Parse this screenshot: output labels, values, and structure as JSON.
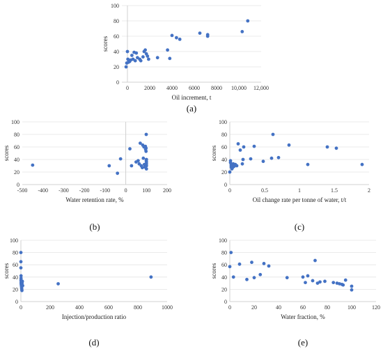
{
  "colors": {
    "point": "#4472c4",
    "axis": "#d0d0d0",
    "grid": "#e4e4e4"
  },
  "chart_data": [
    {
      "type": "scatter",
      "panel_label": "(a)",
      "xlabel": "Oil increment, t",
      "ylabel": "scores",
      "xlim": [
        -500,
        12000
      ],
      "ylim": [
        0,
        100
      ],
      "xticks": [
        0,
        2000,
        4000,
        6000,
        8000,
        10000,
        12000
      ],
      "xtick_labels": [
        "0",
        "2000",
        "4000",
        "6000",
        "8000",
        "10,000",
        "12,000"
      ],
      "yticks": [
        0,
        20,
        40,
        60,
        80,
        100
      ],
      "grid": "horizontal",
      "x": [
        -120,
        -60,
        0,
        40,
        80,
        150,
        200,
        300,
        400,
        500,
        600,
        700,
        800,
        900,
        1100,
        1200,
        1400,
        1500,
        1600,
        1700,
        1800,
        1900,
        2700,
        3600,
        3800,
        4000,
        4400,
        4700,
        6500,
        7200,
        7200,
        10300,
        10800
      ],
      "y": [
        20,
        25,
        40,
        30,
        26,
        28,
        27,
        29,
        35,
        30,
        39,
        28,
        38,
        32,
        30,
        28,
        33,
        40,
        42,
        37,
        34,
        30,
        32,
        42,
        31,
        61,
        58,
        56,
        64,
        62,
        60,
        66,
        80
      ]
    },
    {
      "type": "scatter",
      "panel_label": "(b)",
      "xlabel": "Water retention rate, %",
      "ylabel": "scores",
      "xlim": [
        -500,
        200
      ],
      "ylim": [
        0,
        100
      ],
      "xticks": [
        -500,
        -400,
        -300,
        -200,
        -100,
        0,
        100,
        200
      ],
      "yticks": [
        0,
        20,
        40,
        60,
        80,
        100
      ],
      "grid": "horizontal",
      "x": [
        -450,
        -80,
        -40,
        -25,
        20,
        28,
        50,
        60,
        65,
        70,
        75,
        80,
        82,
        85,
        88,
        90,
        92,
        95,
        96,
        98,
        99,
        100,
        100,
        100,
        100,
        100,
        99,
        98
      ],
      "y": [
        31,
        30,
        18,
        41,
        57,
        30,
        36,
        38,
        33,
        66,
        30,
        27,
        63,
        42,
        60,
        32,
        28,
        61,
        56,
        58,
        80,
        40,
        36,
        33,
        30,
        25,
        38,
        53
      ]
    },
    {
      "type": "scatter",
      "panel_label": "(c)",
      "xlabel": "Oil change rate per tonne of water, t/t",
      "ylabel": "scores",
      "xlim": [
        0,
        2
      ],
      "ylim": [
        0,
        100
      ],
      "xticks": [
        0,
        0.5,
        1,
        1.5,
        2
      ],
      "yticks": [
        0,
        20,
        40,
        60,
        80,
        100
      ],
      "grid": "horizontal",
      "x": [
        0.0,
        0.01,
        0.01,
        0.02,
        0.02,
        0.03,
        0.03,
        0.04,
        0.05,
        0.06,
        0.08,
        0.1,
        0.12,
        0.15,
        0.18,
        0.19,
        0.2,
        0.3,
        0.35,
        0.48,
        0.6,
        0.62,
        0.7,
        0.85,
        1.12,
        1.4,
        1.53,
        1.9
      ],
      "y": [
        20,
        35,
        38,
        28,
        31,
        25,
        30,
        27,
        33,
        29,
        32,
        30,
        65,
        55,
        33,
        40,
        60,
        41,
        61,
        37,
        42,
        80,
        43,
        63,
        32,
        60,
        58,
        32
      ]
    },
    {
      "type": "scatter",
      "panel_label": "(d)",
      "xlabel": "Injection/production ratio",
      "ylabel": "scores",
      "xlim": [
        0,
        1000
      ],
      "ylim": [
        0,
        100
      ],
      "xticks": [
        0,
        200,
        400,
        600,
        800,
        1000
      ],
      "yticks": [
        0,
        20,
        40,
        60,
        80,
        100
      ],
      "grid": "horizontal",
      "x": [
        0,
        0,
        0,
        1,
        1,
        1,
        2,
        2,
        2,
        3,
        3,
        3,
        4,
        4,
        5,
        5,
        6,
        7,
        8,
        10,
        12,
        255,
        890
      ],
      "y": [
        80,
        65,
        55,
        42,
        38,
        35,
        33,
        31,
        30,
        29,
        28,
        27,
        26,
        25,
        24,
        22,
        20,
        18,
        30,
        33,
        26,
        29,
        40
      ]
    },
    {
      "type": "scatter",
      "panel_label": "(e)",
      "xlabel": "Water fraction, %",
      "ylabel": "scores",
      "xlim": [
        0,
        120
      ],
      "ylim": [
        0,
        100
      ],
      "xticks": [
        0,
        20,
        40,
        60,
        80,
        100,
        120
      ],
      "yticks": [
        0,
        20,
        40,
        60,
        80,
        100
      ],
      "grid": "horizontal",
      "x": [
        0,
        1,
        3,
        8,
        14,
        18,
        20,
        25,
        28,
        32,
        47,
        60,
        62,
        64,
        68,
        70,
        72,
        74,
        78,
        85,
        88,
        90,
        92,
        93,
        95,
        100,
        100
      ],
      "y": [
        57,
        80,
        40,
        61,
        36,
        64,
        39,
        44,
        62,
        58,
        39,
        40,
        31,
        42,
        34,
        67,
        30,
        32,
        33,
        31,
        30,
        29,
        28,
        27,
        35,
        25,
        19
      ]
    }
  ]
}
